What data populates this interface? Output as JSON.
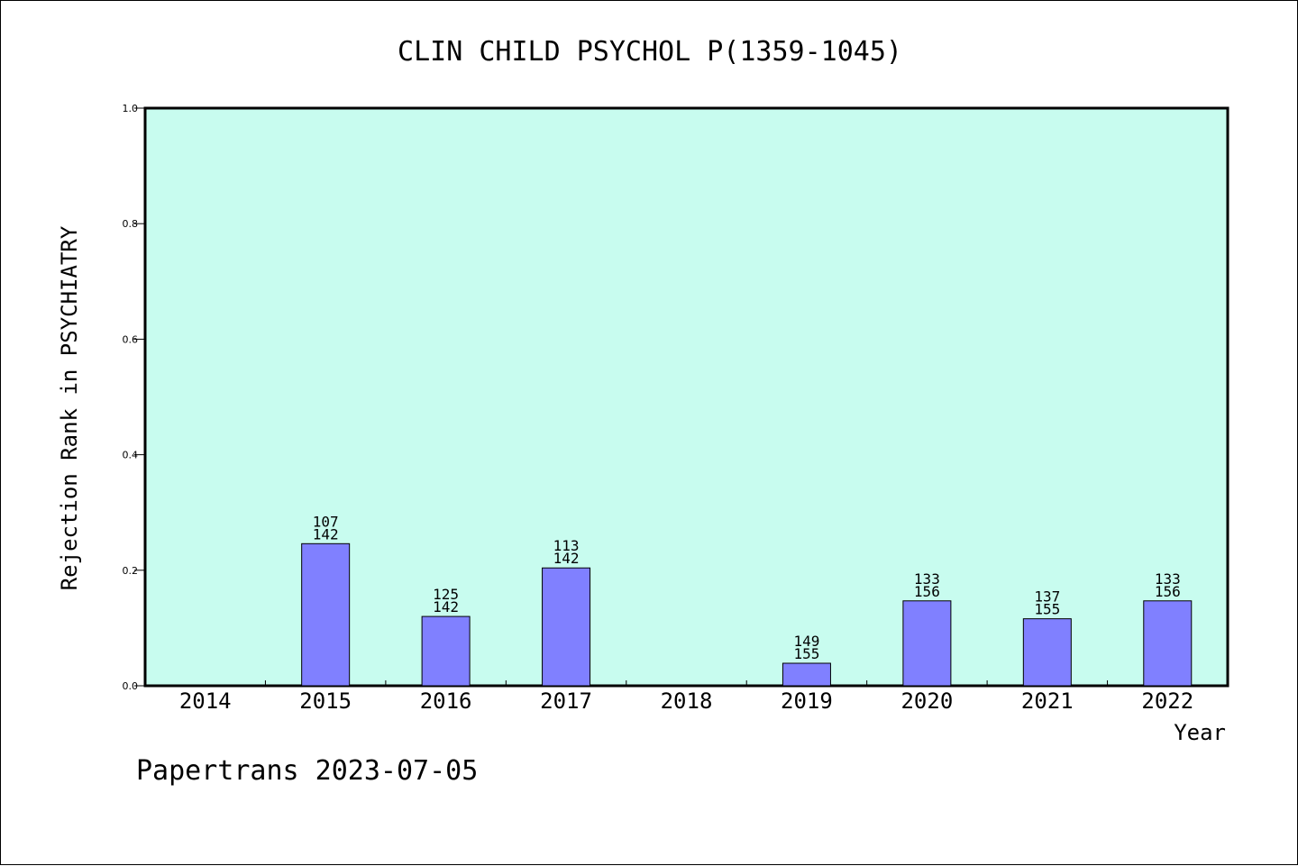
{
  "chart_data": {
    "type": "bar",
    "title": "CLIN CHILD PSYCHOL P(1359-1045)",
    "xlabel": "Year",
    "ylabel": "Rejection Rank in PSYCHIATRY",
    "ylim": [
      0.0,
      1.0
    ],
    "yticks": [
      "0.0",
      "0.2",
      "0.4",
      "0.6",
      "0.8",
      "1.0"
    ],
    "categories": [
      "2014",
      "2015",
      "2016",
      "2017",
      "2018",
      "2019",
      "2020",
      "2021",
      "2022"
    ],
    "values": [
      0,
      0.246,
      0.12,
      0.204,
      0,
      0.039,
      0.147,
      0.116,
      0.147
    ],
    "labels_top": [
      "",
      "107",
      "125",
      "113",
      "",
      "149",
      "133",
      "137",
      "133"
    ],
    "labels_bottom": [
      "",
      "142",
      "142",
      "142",
      "",
      "155",
      "156",
      "155",
      "156"
    ],
    "grid": false,
    "colors": {
      "plot_background": "#c8fcef",
      "bar_fill": "#8080ff",
      "axis": "#000000"
    }
  },
  "footer": {
    "credit": "Papertrans 2023-07-05"
  }
}
